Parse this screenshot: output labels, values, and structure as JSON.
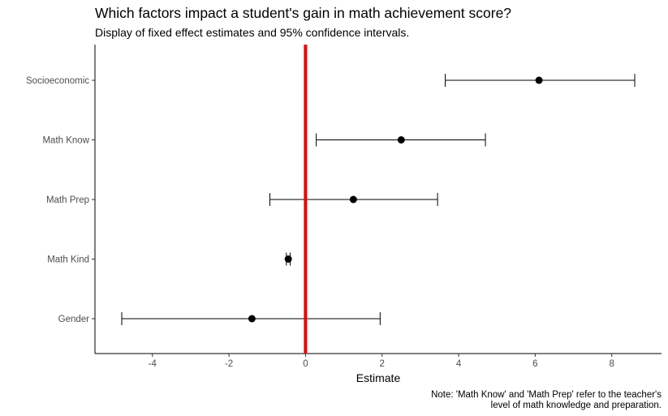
{
  "chart_data": {
    "type": "forest",
    "title": "Which factors impact a student's gain in math achievement score?",
    "subtitle": "Display of fixed effect estimates and 95% confidence intervals.",
    "xlabel": "Estimate",
    "ylabel": "",
    "xlim": [
      -5.5,
      9.3
    ],
    "x_ticks": [
      -4,
      -2,
      0,
      2,
      4,
      6,
      8
    ],
    "grid": false,
    "reference_line": {
      "x": 0,
      "color": "#ee0000"
    },
    "point_color": "#000000",
    "categories": [
      "Socioeconomic",
      "Math Know",
      "Math Prep",
      "Math Kind",
      "Gender"
    ],
    "estimates": [
      {
        "label": "Socioeconomic",
        "estimate": 6.1,
        "lower": 3.65,
        "upper": 8.6
      },
      {
        "label": "Math Know",
        "estimate": 2.5,
        "lower": 0.28,
        "upper": 4.7
      },
      {
        "label": "Math Prep",
        "estimate": 1.25,
        "lower": -0.93,
        "upper": 3.45
      },
      {
        "label": "Math Kind",
        "estimate": -0.45,
        "lower": -0.5,
        "upper": -0.4
      },
      {
        "label": "Gender",
        "estimate": -1.4,
        "lower": -4.8,
        "upper": 1.95
      }
    ],
    "caption": [
      "Note: 'Math Know' and 'Math Prep' refer to the teacher's",
      "level of math knowledge and preparation."
    ]
  }
}
